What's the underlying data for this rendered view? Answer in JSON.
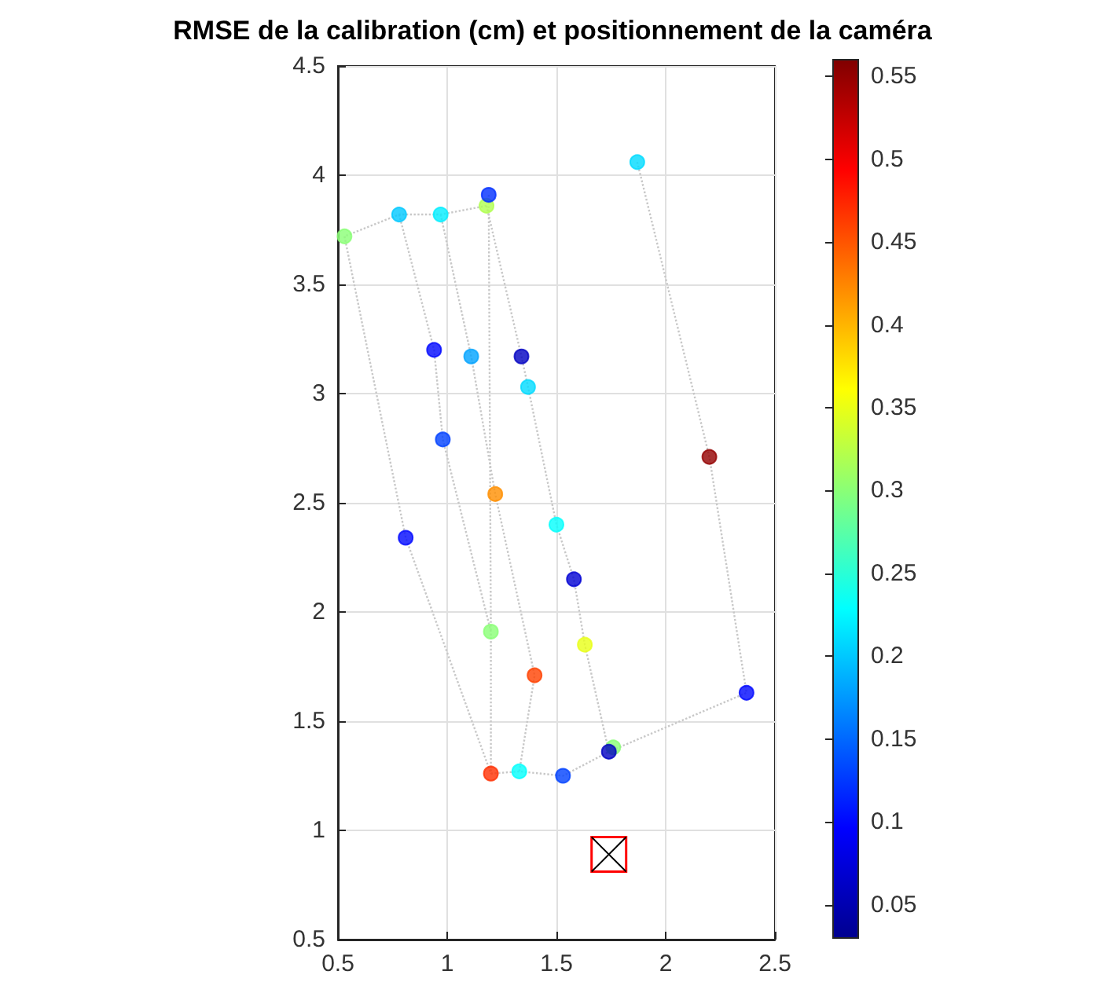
{
  "chart_data": {
    "type": "scatter",
    "title": "RMSE de la calibration (cm) et positionnement de la caméra",
    "xlim": [
      0.5,
      2.5
    ],
    "xticks": [
      0.5,
      1,
      1.5,
      2,
      2.5
    ],
    "ylim": [
      0.5,
      4.5
    ],
    "yticks": [
      0.5,
      1,
      1.5,
      2,
      2.5,
      3,
      3.5,
      4,
      4.5
    ],
    "grid": true,
    "clim": [
      0.03,
      0.56
    ],
    "cticks": [
      0.05,
      0.1,
      0.15,
      0.2,
      0.25,
      0.3,
      0.35,
      0.4,
      0.45,
      0.5,
      0.55
    ],
    "series": [
      {
        "type": "line",
        "color": "#c8c8c8",
        "line_style": "dotted",
        "marker": "none",
        "x": [
          1.18,
          0.97,
          0.78,
          0.53
        ],
        "values": [
          3.86,
          3.82,
          3.82,
          3.72
        ]
      },
      {
        "type": "line",
        "color": "#c8c8c8",
        "line_style": "dotted",
        "marker": "none",
        "x": [
          0.53,
          0.81,
          1.2
        ],
        "values": [
          3.72,
          2.34,
          1.26
        ]
      },
      {
        "type": "line",
        "color": "#c8c8c8",
        "line_style": "dotted",
        "marker": "none",
        "x": [
          0.78,
          0.94,
          0.98,
          1.2,
          1.2
        ],
        "values": [
          3.82,
          3.2,
          2.79,
          1.91,
          1.26
        ]
      },
      {
        "type": "line",
        "color": "#c8c8c8",
        "line_style": "dotted",
        "marker": "none",
        "x": [
          0.97,
          1.11,
          1.22,
          1.4,
          1.33
        ],
        "values": [
          3.82,
          3.17,
          2.54,
          1.71,
          1.27
        ]
      },
      {
        "type": "line",
        "color": "#c8c8c8",
        "line_style": "dotted",
        "marker": "none",
        "x": [
          1.18,
          1.34,
          1.37,
          1.5,
          1.58,
          1.63,
          1.74
        ],
        "values": [
          3.86,
          3.17,
          3.03,
          2.4,
          2.15,
          1.85,
          1.36
        ]
      },
      {
        "type": "line",
        "color": "#c8c8c8",
        "line_style": "dotted",
        "marker": "none",
        "x": [
          1.19,
          1.2
        ],
        "values": [
          3.91,
          1.91
        ]
      },
      {
        "type": "line",
        "color": "#c8c8c8",
        "line_style": "dotted",
        "marker": "none",
        "x": [
          1.2,
          1.33,
          1.53,
          1.74,
          2.37
        ],
        "values": [
          1.26,
          1.27,
          1.25,
          1.36,
          1.63
        ]
      },
      {
        "type": "line",
        "color": "#c8c8c8",
        "line_style": "dotted",
        "marker": "none",
        "x": [
          1.87,
          2.2,
          2.37
        ],
        "values": [
          4.06,
          2.71,
          1.63
        ]
      },
      {
        "type": "scatter",
        "marker": "circle",
        "x": [
          0.53,
          0.78,
          0.97,
          1.18,
          1.19,
          1.87,
          0.94,
          1.11,
          1.34,
          1.37,
          0.98,
          2.2,
          1.22,
          1.5,
          0.81,
          1.58,
          1.2,
          1.63,
          1.4,
          2.37,
          1.76,
          1.74,
          1.2,
          1.33,
          1.53
        ],
        "values": [
          3.72,
          3.82,
          3.82,
          3.86,
          3.91,
          4.06,
          3.2,
          3.17,
          3.17,
          3.03,
          2.79,
          2.71,
          2.54,
          2.4,
          2.34,
          2.15,
          1.91,
          1.85,
          1.71,
          1.63,
          1.38,
          1.36,
          1.26,
          1.27,
          1.25
        ],
        "colors": [
          "#8aff76",
          "#00c8ff",
          "#00eeff",
          "#b0ff50",
          "#002eff",
          "#00dbff",
          "#0007ff",
          "#00a2ff",
          "#0000c2",
          "#00dbff",
          "#0041ff",
          "#930000",
          "#ff8e00",
          "#02fffd",
          "#0007ff",
          "#0000d3",
          "#8aff76",
          "#e9ff16",
          "#ff4100",
          "#0007ff",
          "#8aff76",
          "#0000c2",
          "#ff2e00",
          "#02fffd",
          "#0041ff"
        ],
        "cvalues": [
          0.3,
          0.2,
          0.22,
          0.32,
          0.12,
          0.21,
          0.1,
          0.18,
          0.06,
          0.21,
          0.13,
          0.55,
          0.42,
          0.23,
          0.1,
          0.07,
          0.3,
          0.35,
          0.46,
          0.1,
          0.3,
          0.06,
          0.47,
          0.23,
          0.13
        ]
      },
      {
        "type": "scatter",
        "marker": "square",
        "color": "#ff0000",
        "x": [
          1.74
        ],
        "values": [
          0.89
        ]
      }
    ]
  }
}
